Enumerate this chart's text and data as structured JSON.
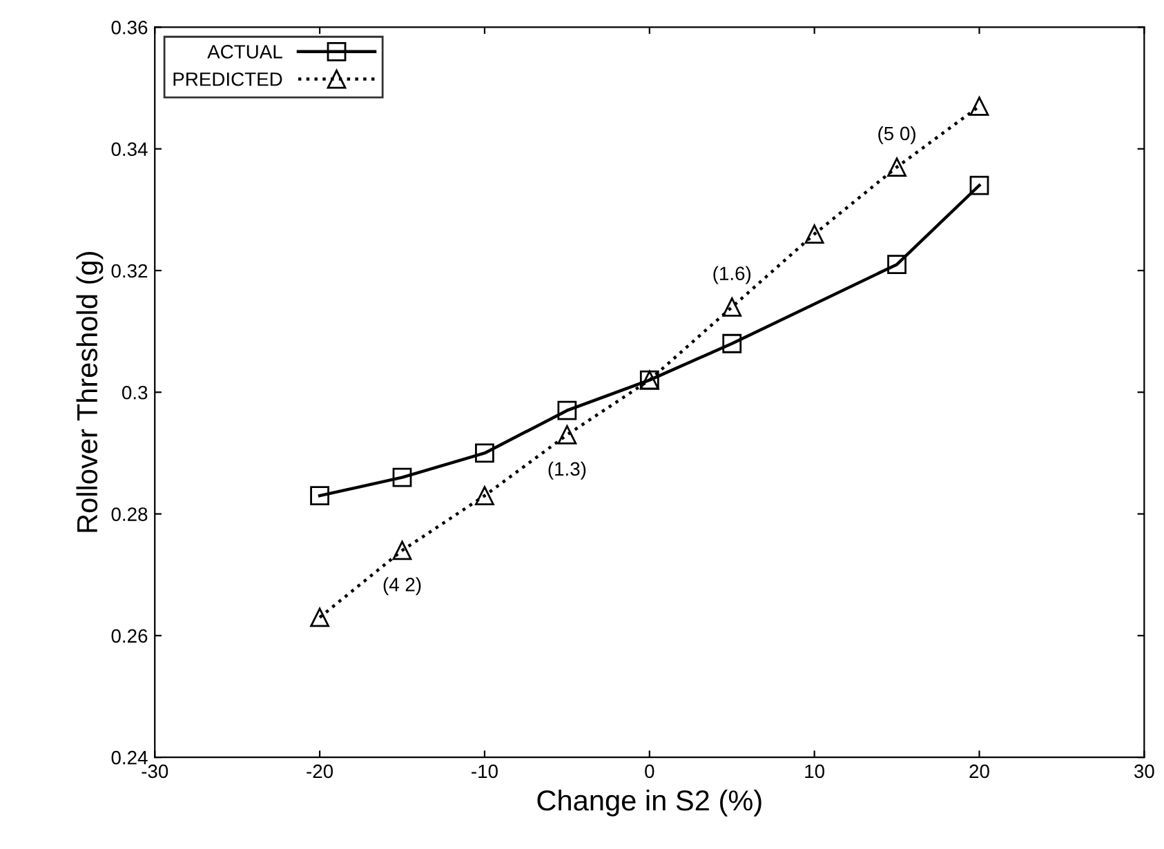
{
  "chart_data": {
    "type": "line",
    "xlabel": "Change in S2 (%)",
    "ylabel": "Rollover Threshold (g)",
    "x": [
      -20,
      -15,
      -10,
      -5,
      0,
      5,
      10,
      15,
      20
    ],
    "series": [
      {
        "name": "ACTUAL",
        "color": "#000000",
        "x": [
          -20,
          -15,
          -10,
          -5,
          0,
          5,
          15,
          20
        ],
        "values": [
          0.283,
          0.286,
          0.29,
          0.297,
          0.302,
          0.308,
          0.321,
          0.334
        ],
        "marker": "square",
        "line_style": "solid"
      },
      {
        "name": "PREDICTED",
        "color": "#000000",
        "values": [
          0.263,
          0.274,
          0.283,
          0.293,
          0.302,
          0.314,
          0.326,
          0.337,
          0.347
        ],
        "marker": "triangle",
        "line_style": "dotted"
      }
    ],
    "annotations": [
      {
        "text": "(4 2)",
        "x": -15,
        "y": 0.274
      },
      {
        "text": "(1.3)",
        "x": -5,
        "y": 0.293
      },
      {
        "text": "(1.6)",
        "x": 5,
        "y": 0.314
      },
      {
        "text": "(5 0)",
        "x": 15,
        "y": 0.337
      }
    ],
    "xlim": [
      -30,
      30
    ],
    "xticks": [
      -30,
      -20,
      -10,
      0,
      10,
      20,
      30
    ],
    "ylim": [
      0.24,
      0.36
    ],
    "yticks": [
      0.24,
      0.26,
      0.28,
      0.3,
      0.32,
      0.34,
      0.36
    ],
    "legend": "top left",
    "grid": false
  }
}
